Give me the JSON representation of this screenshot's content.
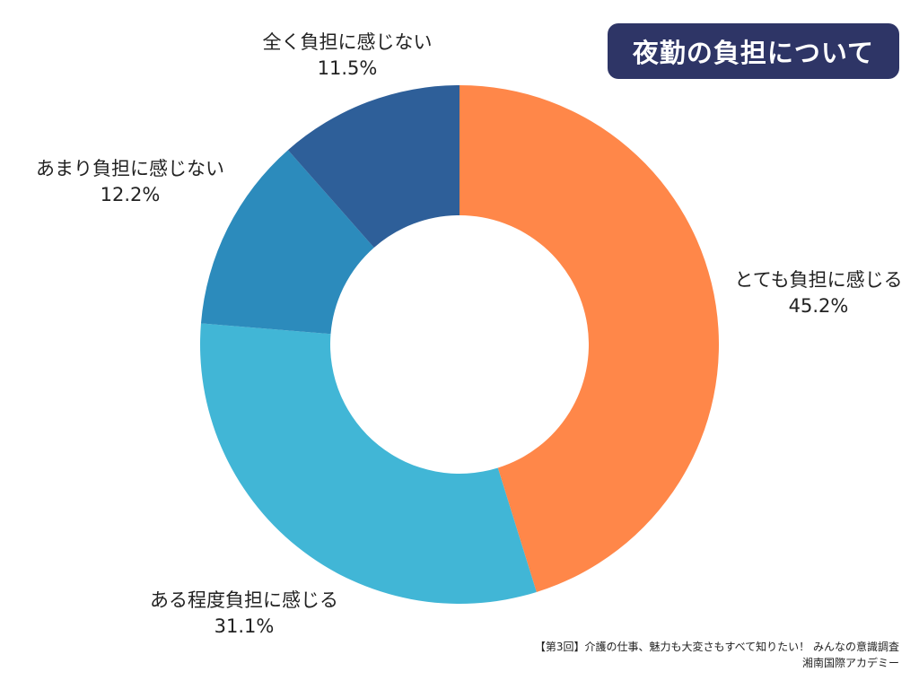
{
  "title": "夜勤の負担について",
  "chart_data": {
    "type": "pie",
    "title": "夜勤の負担について",
    "series": [
      {
        "label": "とても負担に感じる",
        "value": 45.2,
        "value_label": "45.2%",
        "color": "#ff8749"
      },
      {
        "label": "ある程度負担に感じる",
        "value": 31.1,
        "value_label": "31.1%",
        "color": "#41b6d6"
      },
      {
        "label": "あまり負担に感じない",
        "value": 12.2,
        "value_label": "12.2%",
        "color": "#2c8bbc"
      },
      {
        "label": "全く負担に感じない",
        "value": 11.5,
        "value_label": "11.5%",
        "color": "#2e5f99"
      }
    ],
    "donut": true,
    "start": "12 o'clock, clockwise",
    "legend": "none (labels outside slices)"
  },
  "footer": {
    "survey": "【第3回】介護の仕事、魅力も大変さもすべて知りたい！ みんなの意識調査",
    "org": "湘南国際アカデミー"
  }
}
